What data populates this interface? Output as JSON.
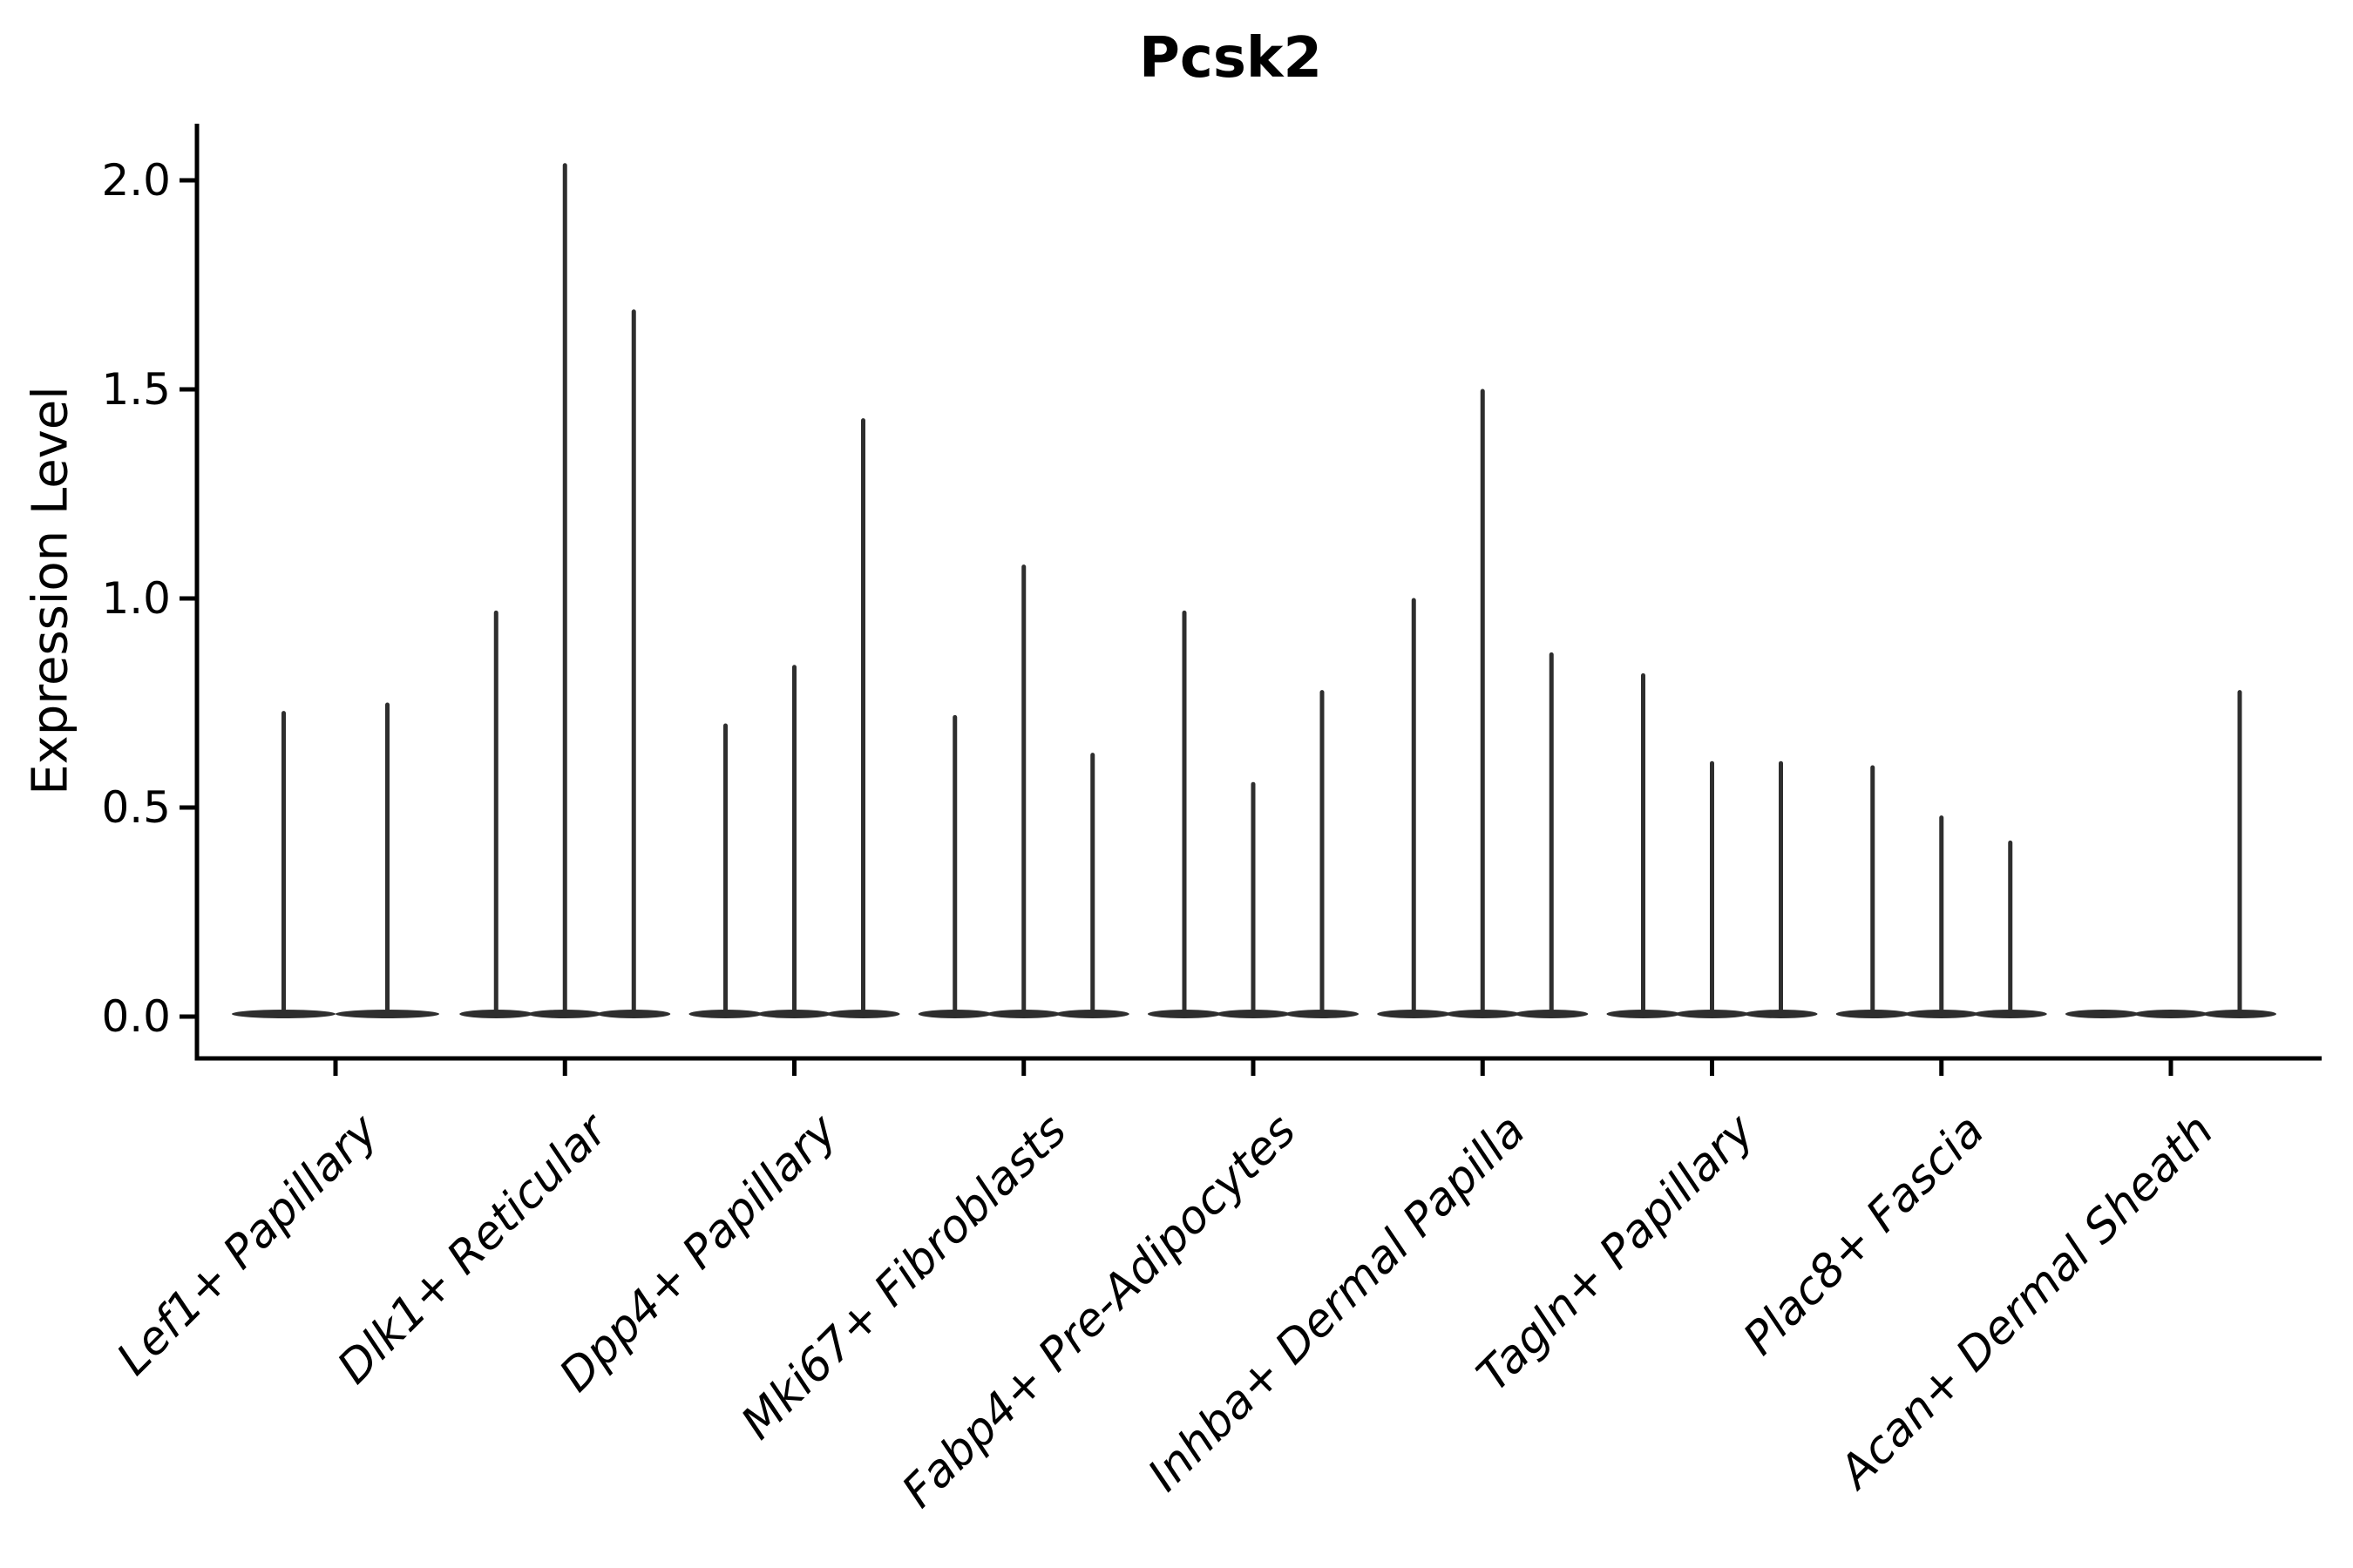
{
  "chart_data": {
    "type": "violin",
    "title": "Pcsk2",
    "xlabel": "",
    "ylabel": "Expression Level",
    "yticks": [
      0.0,
      0.5,
      1.0,
      1.5,
      2.0
    ],
    "ytick_labels": [
      "0.0",
      "0.5",
      "1.0",
      "1.5",
      "2.0"
    ],
    "ylim": [
      -0.1,
      2.14
    ],
    "grid": false,
    "legend": "none",
    "categories": [
      "Lef1+ Papillary",
      "Dlk1+ Reticular",
      "Dpp4+ Papillary",
      "Mki67+ Fibroblasts",
      "Fabp4+ Pre-Adipocytes",
      "Inhba+ Dermal Papilla",
      "Tagln+ Papillary",
      "Plac8+ Fascia",
      "Acan+ Dermal Sheath"
    ],
    "violin_peaks": [
      [
        0.73,
        0.75
      ],
      [
        0.97,
        2.04,
        1.69
      ],
      [
        0.7,
        0.84,
        1.43
      ],
      [
        0.72,
        1.08,
        0.63
      ],
      [
        0.97,
        0.56,
        0.78
      ],
      [
        1.0,
        1.5,
        0.87
      ],
      [
        0.82,
        0.61,
        0.61
      ],
      [
        0.6,
        0.48,
        0.42
      ],
      [
        0.0,
        0.0,
        0.78
      ]
    ],
    "colors": {
      "violin": "#2e2e2e",
      "axis": "#000000",
      "background": "#ffffff"
    }
  }
}
